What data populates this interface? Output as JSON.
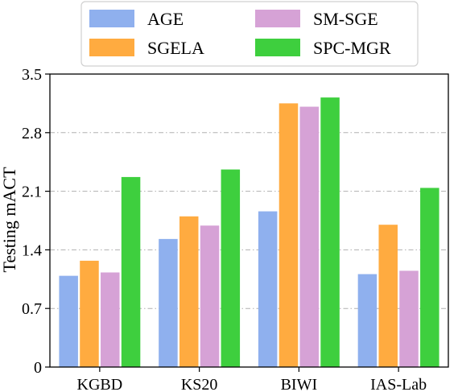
{
  "chart_data": {
    "type": "bar",
    "title": "",
    "xlabel": "",
    "ylabel": "Testing mACT",
    "ylim": [
      0,
      3.5
    ],
    "yticks": [
      "0",
      "0.7",
      "1.4",
      "2.1",
      "2.8",
      "3.5"
    ],
    "grid": "horizontal dash-dot",
    "legend_position": "top-center",
    "categories": [
      "KGBD",
      "KS20",
      "BIWI",
      "IAS-Lab"
    ],
    "series": [
      {
        "name": "AGE",
        "color": "#8fb0ee",
        "values": [
          1.09,
          1.53,
          1.86,
          1.11
        ]
      },
      {
        "name": "SGELA",
        "color": "#ffab40",
        "values": [
          1.27,
          1.8,
          3.15,
          1.7
        ]
      },
      {
        "name": "SM-SGE",
        "color": "#d6a2d6",
        "values": [
          1.13,
          1.69,
          3.11,
          1.15
        ]
      },
      {
        "name": "SPC-MGR",
        "color": "#3ecf3e",
        "values": [
          2.27,
          2.36,
          3.22,
          2.14
        ]
      }
    ]
  }
}
